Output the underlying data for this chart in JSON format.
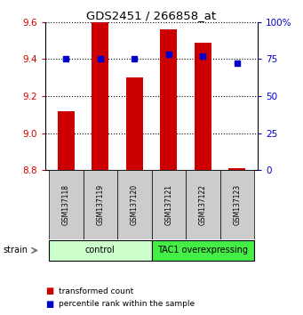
{
  "title": "GDS2451 / 266858_at",
  "samples": [
    "GSM137118",
    "GSM137119",
    "GSM137120",
    "GSM137121",
    "GSM137122",
    "GSM137123"
  ],
  "transformed_counts": [
    9.12,
    9.6,
    9.3,
    9.56,
    9.49,
    8.81
  ],
  "percentile_ranks": [
    75,
    75,
    75,
    78,
    77,
    72
  ],
  "ylim_left": [
    8.8,
    9.6
  ],
  "ylim_right": [
    0,
    100
  ],
  "yticks_left": [
    8.8,
    9.0,
    9.2,
    9.4,
    9.6
  ],
  "yticks_right": [
    0,
    25,
    50,
    75,
    100
  ],
  "bar_color": "#cc0000",
  "dot_color": "#0000cc",
  "groups": [
    {
      "label": "control",
      "indices": [
        0,
        1,
        2
      ],
      "color": "#ccffcc"
    },
    {
      "label": "TAC1 overexpressing",
      "indices": [
        3,
        4,
        5
      ],
      "color": "#44ee44"
    }
  ],
  "bar_width": 0.5,
  "left_tick_color": "#cc0000",
  "right_tick_color": "#0000cc",
  "background_color": "#ffffff",
  "legend_red_label": "transformed count",
  "legend_blue_label": "percentile rank within the sample",
  "strain_label": "strain",
  "figsize": [
    3.41,
    3.54
  ],
  "dpi": 100
}
